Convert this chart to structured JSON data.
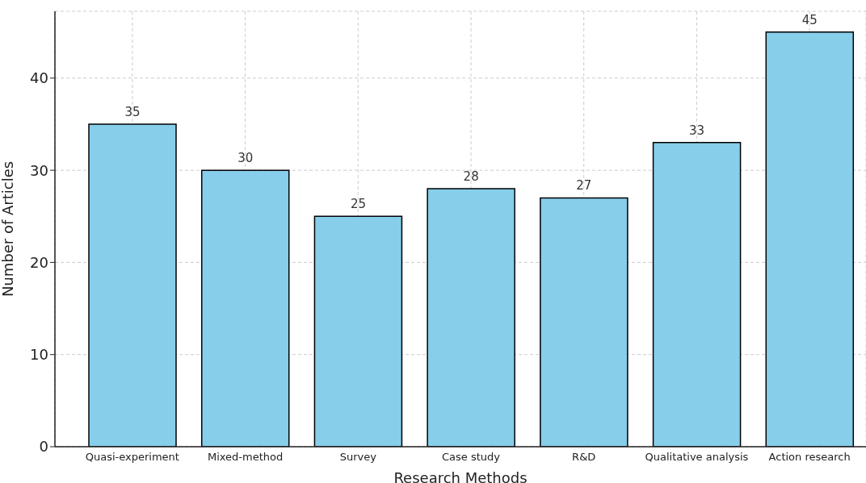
{
  "chart_data": {
    "type": "bar",
    "xlabel": "Research Methods",
    "ylabel": "Number of Articles",
    "categories": [
      "Quasi-experiment",
      "Mixed-method",
      "Survey",
      "Case study",
      "R&D",
      "Qualitative analysis",
      "Action research"
    ],
    "values": [
      35,
      30,
      25,
      28,
      27,
      33,
      45
    ],
    "color": "#87ceeb",
    "ylim": [
      0,
      47.25
    ],
    "yticks": [
      0,
      10,
      20,
      30,
      40
    ],
    "grid": true,
    "data_labels": true
  }
}
